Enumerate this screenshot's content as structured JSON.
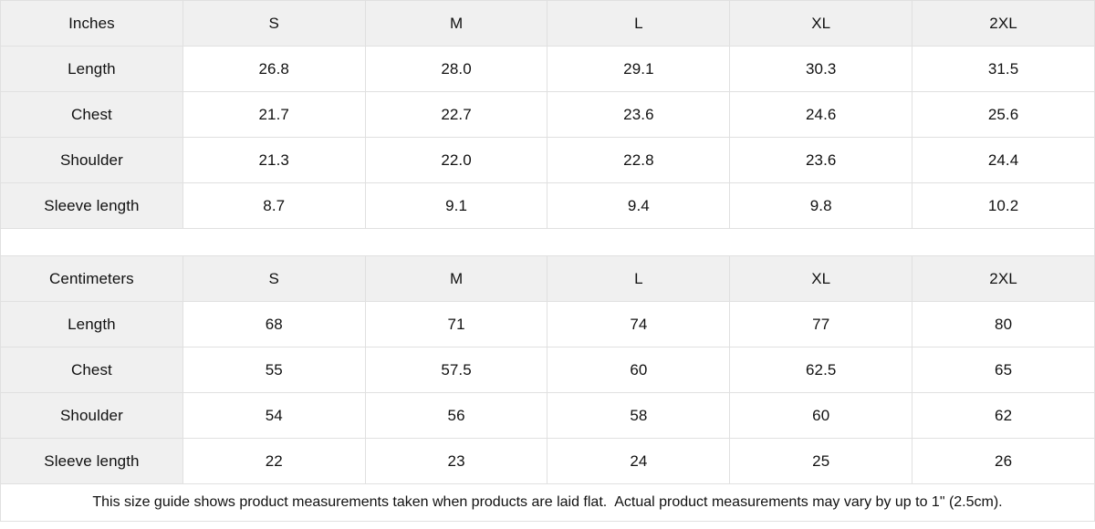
{
  "colors": {
    "header_cell_bg": "#f0f0f0",
    "border": "#e0e0e0",
    "text": "#111111",
    "background": "#ffffff"
  },
  "tables": [
    {
      "unit_label": "Inches",
      "size_headers": [
        "S",
        "M",
        "L",
        "XL",
        "2XL"
      ],
      "rows": [
        {
          "label": "Length",
          "values": [
            "26.8",
            "28.0",
            "29.1",
            "30.3",
            "31.5"
          ]
        },
        {
          "label": "Chest",
          "values": [
            "21.7",
            "22.7",
            "23.6",
            "24.6",
            "25.6"
          ]
        },
        {
          "label": "Shoulder",
          "values": [
            "21.3",
            "22.0",
            "22.8",
            "23.6",
            "24.4"
          ]
        },
        {
          "label": "Sleeve length",
          "values": [
            "8.7",
            "9.1",
            "9.4",
            "9.8",
            "10.2"
          ]
        }
      ]
    },
    {
      "unit_label": "Centimeters",
      "size_headers": [
        "S",
        "M",
        "L",
        "XL",
        "2XL"
      ],
      "rows": [
        {
          "label": "Length",
          "values": [
            "68",
            "71",
            "74",
            "77",
            "80"
          ]
        },
        {
          "label": "Chest",
          "values": [
            "55",
            "57.5",
            "60",
            "62.5",
            "65"
          ]
        },
        {
          "label": "Shoulder",
          "values": [
            "54",
            "56",
            "58",
            "60",
            "62"
          ]
        },
        {
          "label": "Sleeve length",
          "values": [
            "22",
            "23",
            "24",
            "25",
            "26"
          ]
        }
      ]
    }
  ],
  "footer": {
    "note": "This size guide shows product measurements taken when products are laid flat.  Actual product measurements may vary by up to 1\" (2.5cm)."
  }
}
